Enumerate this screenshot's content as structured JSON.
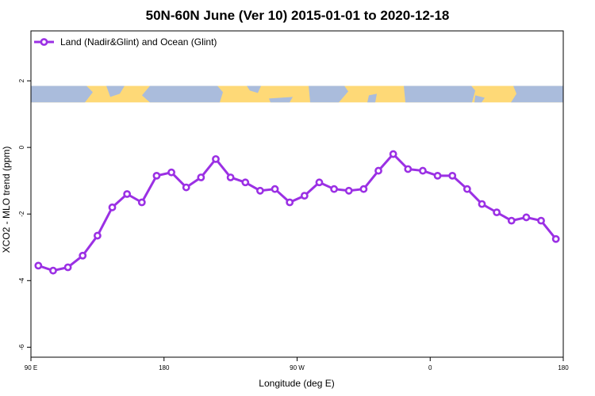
{
  "chart_data": {
    "type": "line",
    "title": "50N-60N June (Ver 10)   2015-01-01 to 2020-12-18",
    "xlabel": "Longitude (deg E)",
    "ylabel": "XCO2 - MLO trend (ppm)",
    "xlim": [
      90,
      450
    ],
    "ylim": [
      -6.3,
      3.5
    ],
    "x_ticks": [
      {
        "value": 90,
        "label": "90 E"
      },
      {
        "value": 180,
        "label": "180"
      },
      {
        "value": 270,
        "label": "90 W"
      },
      {
        "value": 360,
        "label": "0"
      },
      {
        "value": 450,
        "label": "180"
      }
    ],
    "y_ticks": [
      {
        "value": 2,
        "label": "2"
      },
      {
        "value": 0,
        "label": "0"
      },
      {
        "value": -2,
        "label": "-2"
      },
      {
        "value": -4,
        "label": "-4"
      },
      {
        "value": -6,
        "label": "-6"
      }
    ],
    "legend_position": "top-left",
    "grid": false,
    "map_strip": {
      "y_top": 1.85,
      "y_bottom": 1.35,
      "land_color": "#fed977",
      "ocean_color": "#aabcdc"
    },
    "series": [
      {
        "name": "Land (Nadir&Glint) and Ocean (Glint)",
        "color": "#9b30e4",
        "x": [
          95,
          105,
          115,
          125,
          135,
          145,
          155,
          165,
          175,
          185,
          195,
          205,
          215,
          225,
          235,
          245,
          255,
          265,
          275,
          285,
          295,
          305,
          315,
          325,
          335,
          345,
          355,
          365,
          375,
          385,
          395,
          405,
          415,
          425,
          435,
          445
        ],
        "y": [
          -3.55,
          -3.7,
          -3.6,
          -3.25,
          -2.65,
          -1.8,
          -1.4,
          -1.65,
          -0.85,
          -0.75,
          -1.2,
          -0.9,
          -0.35,
          -0.9,
          -1.05,
          -1.3,
          -1.25,
          -1.65,
          -1.45,
          -1.05,
          -1.25,
          -1.3,
          -1.25,
          -0.7,
          -0.2,
          -0.65,
          -0.7,
          -0.85,
          -0.85,
          -1.25,
          -1.7,
          -1.95,
          -2.2,
          -2.1,
          -2.2,
          -2.75
        ]
      }
    ]
  }
}
